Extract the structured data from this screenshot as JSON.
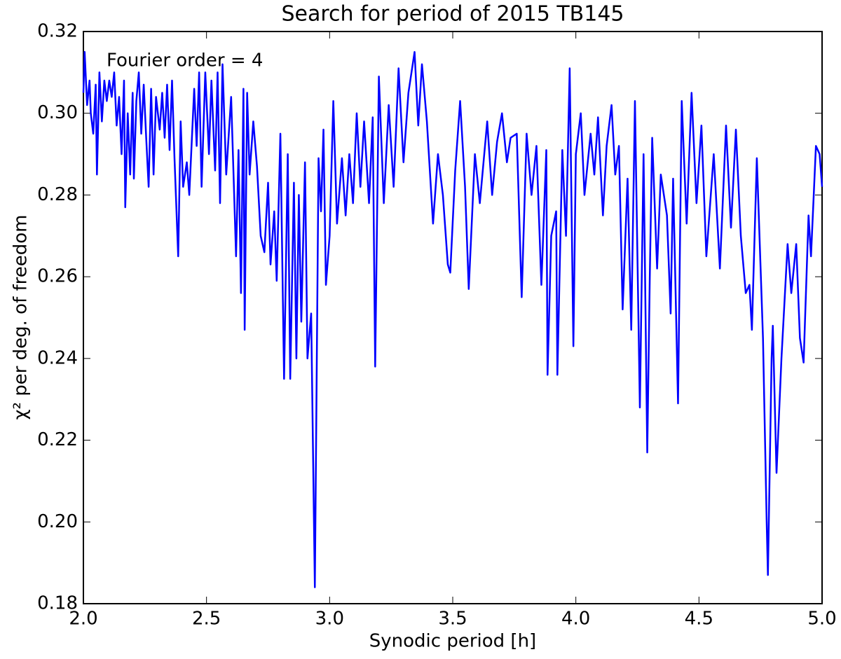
{
  "chart_data": {
    "type": "line",
    "title": "Search for period of 2015 TB145",
    "x_label": "Synodic period [h]",
    "y_label": "χ² per deg. of freedom",
    "annotation": "Fourier order =  4",
    "xlim": [
      2,
      5
    ],
    "ylim": [
      0.18,
      0.32
    ],
    "xticks": [
      {
        "value": 2,
        "label": "2.0"
      },
      2.5,
      {
        "value": 3,
        "label": "3.0"
      },
      3.5,
      {
        "value": 4,
        "label": "4.0"
      },
      4.5,
      {
        "value": 5,
        "label": "5.0"
      }
    ],
    "yticks": [
      0.18,
      {
        "value": 0.2,
        "label": "0.20"
      },
      0.22,
      0.24,
      0.26,
      0.28,
      {
        "value": 0.3,
        "label": "0.30"
      },
      0.32
    ],
    "series": [
      {
        "color": "#0000ff",
        "x": [
          2.0,
          2.005,
          2.015,
          2.025,
          2.03,
          2.04,
          2.05,
          2.055,
          2.065,
          2.075,
          2.085,
          2.095,
          2.105,
          2.115,
          2.125,
          2.135,
          2.145,
          2.155,
          2.165,
          2.17,
          2.18,
          2.19,
          2.2,
          2.205,
          2.215,
          2.225,
          2.235,
          2.245,
          2.255,
          2.265,
          2.275,
          2.285,
          2.295,
          2.31,
          2.32,
          2.33,
          2.34,
          2.35,
          2.36,
          2.37,
          2.385,
          2.395,
          2.405,
          2.42,
          2.43,
          2.45,
          2.46,
          2.47,
          2.48,
          2.495,
          2.51,
          2.52,
          2.535,
          2.545,
          2.555,
          2.565,
          2.58,
          2.6,
          2.62,
          2.63,
          2.64,
          2.65,
          2.655,
          2.665,
          2.675,
          2.69,
          2.705,
          2.72,
          2.735,
          2.75,
          2.76,
          2.775,
          2.785,
          2.8,
          2.815,
          2.83,
          2.84,
          2.855,
          2.865,
          2.875,
          2.885,
          2.9,
          2.91,
          2.925,
          2.94,
          2.955,
          2.965,
          2.975,
          2.985,
          3.0,
          3.015,
          3.03,
          3.05,
          3.065,
          3.08,
          3.095,
          3.11,
          3.125,
          3.14,
          3.16,
          3.175,
          3.185,
          3.2,
          3.22,
          3.24,
          3.26,
          3.28,
          3.3,
          3.32,
          3.345,
          3.36,
          3.375,
          3.395,
          3.42,
          3.44,
          3.46,
          3.48,
          3.49,
          3.51,
          3.53,
          3.55,
          3.565,
          3.59,
          3.61,
          3.64,
          3.66,
          3.68,
          3.7,
          3.72,
          3.735,
          3.76,
          3.78,
          3.8,
          3.82,
          3.84,
          3.86,
          3.88,
          3.885,
          3.9,
          3.92,
          3.925,
          3.945,
          3.96,
          3.975,
          3.99,
          4.0,
          4.02,
          4.035,
          4.06,
          4.075,
          4.09,
          4.11,
          4.125,
          4.145,
          4.16,
          4.175,
          4.19,
          4.21,
          4.225,
          4.24,
          4.26,
          4.275,
          4.29,
          4.3,
          4.31,
          4.33,
          4.345,
          4.37,
          4.385,
          4.395,
          4.415,
          4.43,
          4.45,
          4.47,
          4.49,
          4.51,
          4.53,
          4.56,
          4.585,
          4.61,
          4.63,
          4.65,
          4.67,
          4.69,
          4.705,
          4.715,
          4.735,
          4.76,
          4.775,
          4.78,
          4.795,
          4.8,
          4.815,
          4.835,
          4.86,
          4.875,
          4.895,
          4.91,
          4.925,
          4.945,
          4.955,
          4.975,
          4.99,
          5.0
        ],
        "values": [
          0.305,
          0.315,
          0.302,
          0.308,
          0.3,
          0.295,
          0.307,
          0.285,
          0.31,
          0.298,
          0.308,
          0.303,
          0.308,
          0.304,
          0.31,
          0.297,
          0.304,
          0.29,
          0.308,
          0.277,
          0.3,
          0.285,
          0.305,
          0.284,
          0.303,
          0.31,
          0.295,
          0.307,
          0.294,
          0.282,
          0.306,
          0.285,
          0.304,
          0.296,
          0.305,
          0.294,
          0.307,
          0.291,
          0.308,
          0.289,
          0.265,
          0.298,
          0.282,
          0.288,
          0.28,
          0.306,
          0.292,
          0.31,
          0.282,
          0.31,
          0.29,
          0.308,
          0.286,
          0.31,
          0.278,
          0.312,
          0.285,
          0.304,
          0.265,
          0.291,
          0.256,
          0.306,
          0.247,
          0.305,
          0.285,
          0.298,
          0.287,
          0.27,
          0.266,
          0.283,
          0.263,
          0.276,
          0.259,
          0.295,
          0.235,
          0.29,
          0.235,
          0.283,
          0.24,
          0.28,
          0.249,
          0.288,
          0.24,
          0.251,
          0.184,
          0.289,
          0.276,
          0.296,
          0.258,
          0.27,
          0.303,
          0.273,
          0.289,
          0.275,
          0.29,
          0.278,
          0.3,
          0.282,
          0.298,
          0.278,
          0.299,
          0.238,
          0.309,
          0.278,
          0.302,
          0.282,
          0.311,
          0.288,
          0.305,
          0.315,
          0.297,
          0.312,
          0.298,
          0.273,
          0.29,
          0.28,
          0.263,
          0.261,
          0.286,
          0.303,
          0.282,
          0.257,
          0.29,
          0.278,
          0.298,
          0.28,
          0.293,
          0.3,
          0.288,
          0.294,
          0.295,
          0.255,
          0.295,
          0.28,
          0.292,
          0.258,
          0.291,
          0.236,
          0.27,
          0.276,
          0.236,
          0.291,
          0.27,
          0.311,
          0.243,
          0.29,
          0.3,
          0.28,
          0.295,
          0.285,
          0.299,
          0.275,
          0.292,
          0.302,
          0.285,
          0.292,
          0.252,
          0.284,
          0.247,
          0.303,
          0.228,
          0.29,
          0.217,
          0.259,
          0.294,
          0.262,
          0.285,
          0.275,
          0.251,
          0.284,
          0.229,
          0.303,
          0.273,
          0.305,
          0.278,
          0.297,
          0.265,
          0.29,
          0.262,
          0.297,
          0.272,
          0.296,
          0.27,
          0.256,
          0.258,
          0.247,
          0.289,
          0.245,
          0.2,
          0.187,
          0.24,
          0.248,
          0.212,
          0.24,
          0.268,
          0.256,
          0.268,
          0.245,
          0.239,
          0.275,
          0.265,
          0.292,
          0.29,
          0.282
        ]
      }
    ]
  }
}
